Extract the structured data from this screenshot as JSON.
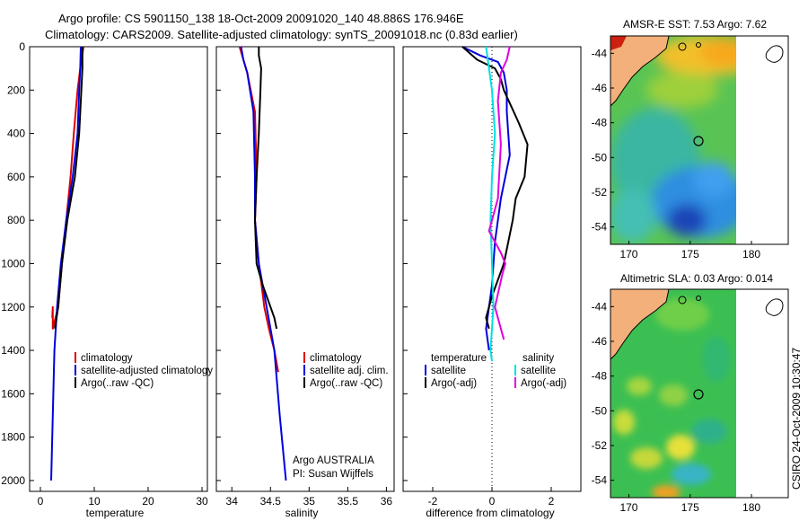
{
  "header": {
    "line1": "Argo profile: CS 5901150_138 18-Oct-2009 20091020_140 48.886S 176.946E",
    "line2": "Climatology: CARS2009. Satellite-adjusted climatology: synTS_20091018.nc (0.83d earlier)"
  },
  "footer": {
    "credit_line1": "Argo AUSTRALIA",
    "credit_line2": "PI: Susan Wijffels",
    "stamp": "CSIRO 24-Oct-2009 10:30:47"
  },
  "colors": {
    "climatology": "#dd0000",
    "satellite": "#0000dd",
    "argo": "#000000",
    "salinity_satellite": "#00e0e0",
    "salinity_argo": "#e000e0",
    "land": "#f4b07a"
  },
  "chart_data": [
    {
      "id": "temperature",
      "type": "line",
      "xlabel": "temperature",
      "ylabel": "",
      "xlim": [
        -2,
        31
      ],
      "ylim": [
        2050,
        0
      ],
      "xticks": [
        "0",
        "10",
        "20",
        "30"
      ],
      "yticks": [
        "0",
        "200",
        "400",
        "600",
        "800",
        "1000",
        "1200",
        "1400",
        "1600",
        "1800",
        "2000"
      ],
      "legend": {
        "position": "lower-right",
        "labels": [
          "climatology",
          "satellite-adjusted climatology",
          "Argo(..raw -QC)"
        ]
      },
      "series": [
        {
          "name": "climatology",
          "color": "#dd0000",
          "x": [
            8.0,
            7.4,
            6.9,
            6.2,
            5.6,
            4.8,
            4.0,
            3.3,
            2.8,
            2.3,
            2.3,
            2.2
          ],
          "y": [
            0,
            100,
            200,
            400,
            600,
            800,
            1000,
            1200,
            1250,
            1300,
            1200,
            1250
          ]
        },
        {
          "name": "satellite-adjusted climatology",
          "color": "#0000dd",
          "x": [
            7.5,
            7.4,
            7.2,
            6.9,
            6.0,
            4.8,
            3.8,
            3.1,
            2.6,
            2.3,
            2.0
          ],
          "y": [
            0,
            100,
            200,
            400,
            600,
            800,
            1000,
            1200,
            1400,
            1700,
            2000
          ]
        },
        {
          "name": "Argo(..raw -QC)",
          "color": "#000000",
          "x": [
            7.8,
            7.8,
            7.6,
            7.2,
            6.4,
            5.0,
            4.0,
            3.3,
            2.7
          ],
          "y": [
            0,
            100,
            200,
            400,
            600,
            800,
            1000,
            1200,
            1300
          ]
        }
      ]
    },
    {
      "id": "salinity",
      "type": "line",
      "xlabel": "salinity",
      "ylabel": "",
      "xlim": [
        33.8,
        36.1
      ],
      "ylim": [
        2050,
        0
      ],
      "xticks": [
        "34",
        "34.5",
        "35",
        "35.5",
        "36"
      ],
      "legend": {
        "position": "lower-right",
        "labels": [
          "climatology",
          "satellite adj. clim.",
          "Argo(..raw -QC)"
        ]
      },
      "series": [
        {
          "name": "climatology",
          "color": "#dd0000",
          "x": [
            34.1,
            34.15,
            34.2,
            34.3,
            34.32,
            34.3,
            34.35,
            34.42,
            34.48,
            34.55,
            34.6
          ],
          "y": [
            0,
            60,
            120,
            300,
            600,
            800,
            1000,
            1200,
            1300,
            1400,
            1500
          ]
        },
        {
          "name": "satellite adj. clim.",
          "color": "#0000dd",
          "x": [
            34.12,
            34.15,
            34.2,
            34.28,
            34.3,
            34.3,
            34.35,
            34.45,
            34.55,
            34.62,
            34.7
          ],
          "y": [
            0,
            60,
            120,
            300,
            600,
            800,
            1000,
            1200,
            1400,
            1700,
            2000
          ]
        },
        {
          "name": "Argo(..raw -QC)",
          "color": "#000000",
          "x": [
            34.35,
            34.35,
            34.38,
            34.37,
            34.35,
            34.32,
            34.3,
            34.32,
            34.4,
            34.55,
            34.58
          ],
          "y": [
            0,
            40,
            100,
            200,
            400,
            600,
            800,
            1000,
            1100,
            1250,
            1300
          ]
        }
      ]
    },
    {
      "id": "difference",
      "type": "line",
      "xlabel": "difference from climatology",
      "ylabel": "",
      "xlim": [
        -3,
        3
      ],
      "ylim": [
        2050,
        0
      ],
      "xticks": [
        "-2",
        "0",
        "2"
      ],
      "legend": {
        "position": "lower",
        "labels": [
          "temperature",
          "satellite",
          "Argo(-adj)",
          "salinity",
          "satellite",
          "Argo(-adj)"
        ]
      },
      "series": [
        {
          "name": "temperature satellite",
          "color": "#0000dd",
          "x": [
            -1.0,
            -0.4,
            0.2,
            0.4,
            0.5,
            0.5,
            0.6,
            0.3,
            0.1,
            0.0,
            -0.1,
            -0.2,
            -0.1
          ],
          "y": [
            0,
            40,
            70,
            120,
            200,
            300,
            500,
            700,
            900,
            1100,
            1200,
            1300,
            1400
          ]
        },
        {
          "name": "temperature Argo(-adj)",
          "color": "#000000",
          "x": [
            -1.0,
            -0.5,
            0.1,
            0.3,
            0.4,
            0.9,
            1.2,
            1.1,
            0.8,
            0.7,
            0.4,
            0.0,
            -0.2,
            -0.1
          ],
          "y": [
            0,
            60,
            100,
            150,
            200,
            350,
            450,
            600,
            700,
            800,
            1000,
            1150,
            1250,
            1300
          ]
        },
        {
          "name": "salinity satellite",
          "color": "#00e0e0",
          "x": [
            -0.2,
            -0.1,
            0.0,
            0.1,
            0.0,
            -0.05,
            0.0,
            0.05,
            0.0,
            -0.05,
            0.0
          ],
          "y": [
            0,
            100,
            200,
            400,
            600,
            800,
            1000,
            1200,
            1300,
            1400,
            1450
          ]
        },
        {
          "name": "salinity Argo(-adj)",
          "color": "#e000e0",
          "x": [
            0.6,
            0.5,
            0.3,
            0.2,
            0.3,
            0.2,
            -0.1,
            0.3,
            0.45,
            0.35,
            0.1,
            0.3,
            0.4
          ],
          "y": [
            0,
            60,
            120,
            250,
            450,
            700,
            850,
            950,
            1000,
            1050,
            1200,
            1300,
            1350
          ]
        }
      ]
    },
    {
      "id": "sst_map",
      "type": "heatmap",
      "title": "AMSR-E SST: 7.53 Argo: 7.62",
      "xlim": [
        168.5,
        183
      ],
      "ylim": [
        -55,
        -43
      ],
      "xticks": [
        "170",
        "175",
        "180"
      ],
      "yticks": [
        "-44",
        "-46",
        "-48",
        "-50",
        "-52",
        "-54"
      ],
      "argo_marker": {
        "lon": 176.946,
        "lat": -48.886
      }
    },
    {
      "id": "sla_map",
      "type": "heatmap",
      "title": "Altimetric SLA: 0.03 Argo: 0.014",
      "xlim": [
        168.5,
        183
      ],
      "ylim": [
        -55,
        -43
      ],
      "xticks": [
        "170",
        "175",
        "180"
      ],
      "yticks": [
        "-44",
        "-46",
        "-48",
        "-50",
        "-52",
        "-54"
      ],
      "argo_marker": {
        "lon": 176.946,
        "lat": -48.886
      }
    }
  ]
}
